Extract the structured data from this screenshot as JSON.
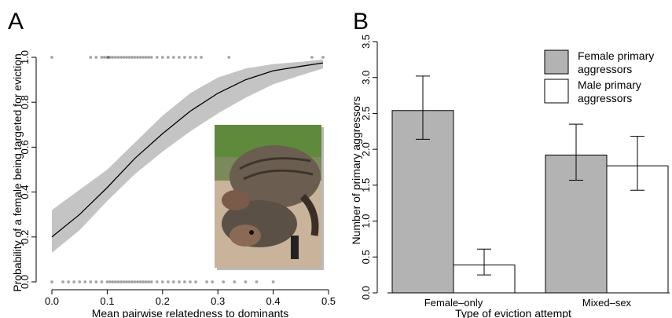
{
  "chart_data": [
    {
      "panel_label": "A",
      "type": "line",
      "xlabel": "Mean pairwise relatedness to dominants",
      "ylabel": "Probability of a female being targeted for eviction",
      "xlim": [
        0.0,
        0.5
      ],
      "ylim": [
        0.0,
        1.0
      ],
      "x_ticks": [
        "0.0",
        "0.1",
        "0.2",
        "0.3",
        "0.4",
        "0.5"
      ],
      "y_ticks": [
        "0.0",
        "0.2",
        "0.4",
        "0.6",
        "0.8",
        "1.0"
      ],
      "fitted_curve": {
        "x": [
          0.0,
          0.05,
          0.1,
          0.15,
          0.2,
          0.25,
          0.3,
          0.35,
          0.4,
          0.45,
          0.49
        ],
        "y": [
          0.2,
          0.3,
          0.42,
          0.55,
          0.66,
          0.76,
          0.84,
          0.9,
          0.94,
          0.96,
          0.975
        ],
        "ci_lower": [
          0.13,
          0.23,
          0.36,
          0.48,
          0.58,
          0.67,
          0.75,
          0.82,
          0.88,
          0.92,
          0.95
        ],
        "ci_upper": [
          0.32,
          0.41,
          0.5,
          0.62,
          0.74,
          0.84,
          0.91,
          0.95,
          0.97,
          0.98,
          0.99
        ]
      },
      "points_y1": [
        0.0,
        0.07,
        0.08,
        0.09,
        0.095,
        0.1,
        0.102,
        0.105,
        0.11,
        0.115,
        0.12,
        0.125,
        0.13,
        0.135,
        0.14,
        0.145,
        0.15,
        0.155,
        0.16,
        0.165,
        0.17,
        0.175,
        0.18,
        0.19,
        0.2,
        0.21,
        0.22,
        0.23,
        0.24,
        0.25,
        0.26,
        0.27,
        0.32,
        0.47,
        0.49
      ],
      "points_y0": [
        0.0,
        0.02,
        0.03,
        0.04,
        0.05,
        0.06,
        0.07,
        0.08,
        0.09,
        0.1,
        0.105,
        0.11,
        0.115,
        0.12,
        0.125,
        0.13,
        0.135,
        0.14,
        0.145,
        0.15,
        0.155,
        0.16,
        0.165,
        0.17,
        0.175,
        0.18,
        0.19,
        0.2,
        0.21,
        0.22,
        0.23,
        0.24,
        0.25,
        0.26,
        0.28,
        0.29,
        0.31,
        0.33,
        0.35,
        0.37,
        0.4
      ],
      "grid": false,
      "inset_photo": "banded mongooses fighting"
    },
    {
      "panel_label": "B",
      "type": "bar",
      "xlabel": "Type of eviction attempt",
      "ylabel": "Number of primary aggressors",
      "categories": [
        "Female–only",
        "Mixed–sex"
      ],
      "ylim": [
        0.0,
        3.5
      ],
      "y_ticks": [
        "0.0",
        "0.5",
        "1.0",
        "1.5",
        "2.0",
        "2.5",
        "3.0",
        "3.5"
      ],
      "series": [
        {
          "name": "Female primary aggressors",
          "line1": "Female primary",
          "line2": "aggressors",
          "color": "#b3b3b3",
          "values": [
            2.54,
            1.92
          ],
          "err_low": [
            2.14,
            1.57
          ],
          "err_high": [
            3.02,
            2.35
          ]
        },
        {
          "name": "Male primary aggressors",
          "line1": "Male primary",
          "line2": "aggressors",
          "color": "#ffffff",
          "values": [
            0.39,
            1.77
          ],
          "err_low": [
            0.25,
            1.43
          ],
          "err_high": [
            0.61,
            2.18
          ]
        }
      ],
      "legend_position": "top-right",
      "grid": false
    }
  ]
}
